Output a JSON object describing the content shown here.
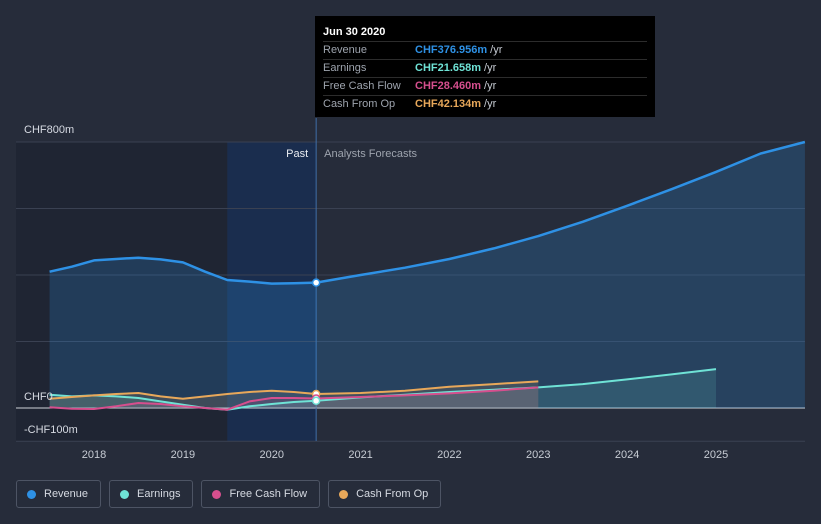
{
  "colors": {
    "revenue": "#2e91e5",
    "earnings": "#6fe3d6",
    "free_cash_flow": "#d64f8e",
    "cash_from_op": "#e8a85a",
    "background": "#262c3a"
  },
  "tooltip": {
    "date": "Jun 30 2020",
    "rows": [
      {
        "label": "Revenue",
        "value": "CHF376.956m",
        "unit": "/yr"
      },
      {
        "label": "Earnings",
        "value": "CHF21.658m",
        "unit": "/yr"
      },
      {
        "label": "Free Cash Flow",
        "value": "CHF28.460m",
        "unit": "/yr"
      },
      {
        "label": "Cash From Op",
        "value": "CHF42.134m",
        "unit": "/yr"
      }
    ]
  },
  "legend": [
    {
      "key": "revenue",
      "label": "Revenue"
    },
    {
      "key": "earnings",
      "label": "Earnings"
    },
    {
      "key": "free_cash_flow",
      "label": "Free Cash Flow"
    },
    {
      "key": "cash_from_op",
      "label": "Cash From Op"
    }
  ],
  "chart_data": {
    "type": "line",
    "title": "",
    "xlabel": "",
    "ylabel": "",
    "x_ticks": [
      2018,
      2019,
      2020,
      2021,
      2022,
      2023,
      2024,
      2025
    ],
    "x_tick_labels": [
      "2018",
      "2019",
      "2020",
      "2021",
      "2022",
      "2023",
      "2024",
      "2025"
    ],
    "xlim": [
      2017.35,
      2026.0
    ],
    "ylim": [
      -100,
      800
    ],
    "y_tick_labels": [
      {
        "value": 800,
        "label": "CHF800m"
      },
      {
        "value": 0,
        "label": "CHF0"
      },
      {
        "value": -100,
        "label": "-CHF100m"
      }
    ],
    "gridline_values": [
      800,
      600,
      400,
      200,
      0,
      -100
    ],
    "past_label": "Past",
    "forecast_label": "Analysts Forecasts",
    "divider_x": 2020.5,
    "shade_darker_start": 2019.5,
    "series": [
      {
        "name": "Revenue",
        "key": "revenue",
        "values": [
          [
            2017.5,
            410
          ],
          [
            2017.75,
            425
          ],
          [
            2018.0,
            444
          ],
          [
            2018.25,
            448
          ],
          [
            2018.5,
            452
          ],
          [
            2018.75,
            447
          ],
          [
            2019.0,
            438
          ],
          [
            2019.25,
            410
          ],
          [
            2019.5,
            385
          ],
          [
            2019.75,
            380
          ],
          [
            2020.0,
            374
          ],
          [
            2020.25,
            375
          ],
          [
            2020.5,
            377
          ]
        ],
        "forecast": [
          [
            2020.5,
            377
          ],
          [
            2021.0,
            400
          ],
          [
            2021.5,
            422
          ],
          [
            2022.0,
            448
          ],
          [
            2022.5,
            480
          ],
          [
            2023.0,
            517
          ],
          [
            2023.5,
            560
          ],
          [
            2024.0,
            608
          ],
          [
            2024.5,
            658
          ],
          [
            2025.0,
            710
          ],
          [
            2025.5,
            765
          ],
          [
            2026.0,
            800
          ]
        ]
      },
      {
        "name": "Earnings",
        "key": "earnings",
        "values": [
          [
            2017.5,
            40
          ],
          [
            2017.75,
            35
          ],
          [
            2018.0,
            38
          ],
          [
            2018.25,
            35
          ],
          [
            2018.5,
            30
          ],
          [
            2018.75,
            20
          ],
          [
            2019.0,
            10
          ],
          [
            2019.25,
            0
          ],
          [
            2019.5,
            -5
          ],
          [
            2019.75,
            5
          ],
          [
            2020.0,
            12
          ],
          [
            2020.25,
            18
          ],
          [
            2020.5,
            21.658
          ]
        ],
        "forecast": [
          [
            2020.5,
            21.658
          ],
          [
            2021.0,
            32
          ],
          [
            2021.5,
            40
          ],
          [
            2022.0,
            48
          ],
          [
            2022.5,
            55
          ],
          [
            2023.0,
            62
          ],
          [
            2023.5,
            72
          ],
          [
            2024.0,
            86
          ],
          [
            2024.5,
            101
          ],
          [
            2025.0,
            117
          ]
        ]
      },
      {
        "name": "Free Cash Flow",
        "key": "free_cash_flow",
        "values": [
          [
            2017.5,
            2
          ],
          [
            2017.75,
            -2
          ],
          [
            2018.0,
            -3
          ],
          [
            2018.25,
            5
          ],
          [
            2018.5,
            15
          ],
          [
            2018.75,
            12
          ],
          [
            2019.0,
            5
          ],
          [
            2019.25,
            0
          ],
          [
            2019.5,
            -5
          ],
          [
            2019.75,
            20
          ],
          [
            2020.0,
            30
          ],
          [
            2020.25,
            30
          ],
          [
            2020.5,
            28.46
          ]
        ],
        "forecast": [
          [
            2020.5,
            28.46
          ],
          [
            2021.0,
            33
          ],
          [
            2021.5,
            38
          ],
          [
            2022.0,
            44
          ],
          [
            2022.5,
            52
          ],
          [
            2023.0,
            62
          ]
        ]
      },
      {
        "name": "Cash From Op",
        "key": "cash_from_op",
        "values": [
          [
            2017.5,
            28
          ],
          [
            2017.75,
            33
          ],
          [
            2018.0,
            38
          ],
          [
            2018.25,
            42
          ],
          [
            2018.5,
            45
          ],
          [
            2018.75,
            35
          ],
          [
            2019.0,
            28
          ],
          [
            2019.25,
            35
          ],
          [
            2019.5,
            42
          ],
          [
            2019.75,
            48
          ],
          [
            2020.0,
            52
          ],
          [
            2020.25,
            48
          ],
          [
            2020.5,
            42.134
          ]
        ],
        "forecast": [
          [
            2020.5,
            42.134
          ],
          [
            2021.0,
            45
          ],
          [
            2021.5,
            52
          ],
          [
            2022.0,
            64
          ],
          [
            2022.5,
            72
          ],
          [
            2023.0,
            80
          ]
        ]
      }
    ]
  }
}
